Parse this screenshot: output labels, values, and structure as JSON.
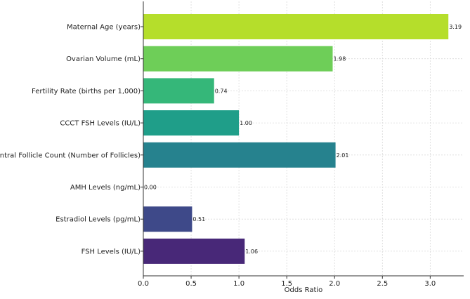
{
  "chart_data": {
    "type": "bar",
    "orientation": "horizontal",
    "title": "",
    "xlabel": "Odds Ratio",
    "ylabel": "",
    "xlim": [
      0,
      3.35
    ],
    "xticks": [
      "0.0",
      "0.5",
      "1.0",
      "1.5",
      "2.0",
      "2.5",
      "3.0"
    ],
    "grid": true,
    "bars": [
      {
        "label": "Maternal Age (years)",
        "value": 3.19,
        "value_label": "3.19",
        "color": "#b5de2b"
      },
      {
        "label": "Ovarian Volume (mL)",
        "value": 1.98,
        "value_label": "1.98",
        "color": "#6ece58"
      },
      {
        "label": "Fertility Rate (births per 1,000)",
        "value": 0.74,
        "value_label": "0.74",
        "color": "#35b779"
      },
      {
        "label": "CCCT FSH Levels (IU/L)",
        "value": 1.0,
        "value_label": "1.00",
        "color": "#1f9e89"
      },
      {
        "label": "Antral Follicle Count (Number of Follicles)",
        "value": 2.01,
        "value_label": "2.01",
        "color": "#26828e"
      },
      {
        "label": "AMH Levels (ng/mL)",
        "value": 0.0,
        "value_label": "0.00",
        "color": "#31688e"
      },
      {
        "label": "Estradiol Levels (pg/mL)",
        "value": 0.51,
        "value_label": "0.51",
        "color": "#3e4989"
      },
      {
        "label": "FSH Levels (IU/L)",
        "value": 1.06,
        "value_label": "1.06",
        "color": "#482878"
      }
    ]
  }
}
